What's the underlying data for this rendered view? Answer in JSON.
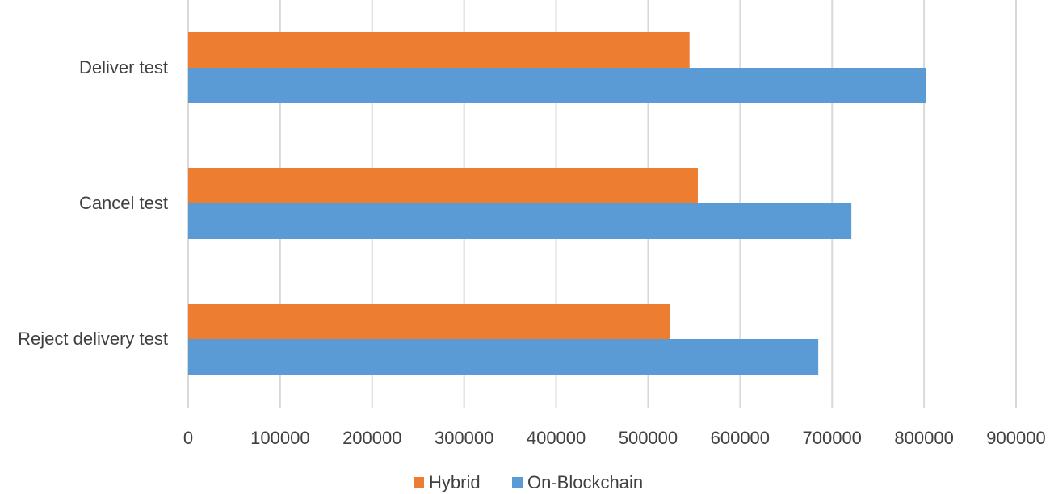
{
  "chart_data": {
    "type": "bar",
    "orientation": "horizontal",
    "categories": [
      "Deliver test",
      "Cancel test",
      "Reject delivery test"
    ],
    "series": [
      {
        "name": "Hybrid",
        "color": "#ED7D31",
        "values": [
          545000,
          554000,
          524000
        ]
      },
      {
        "name": "On-Blockchain",
        "color": "#5B9BD5",
        "values": [
          802000,
          721000,
          685000
        ]
      }
    ],
    "xlim": [
      0,
      900000
    ],
    "xticks": [
      0,
      100000,
      200000,
      300000,
      400000,
      500000,
      600000,
      700000,
      800000,
      900000
    ],
    "xtick_labels": [
      "0",
      "100000",
      "200000",
      "300000",
      "400000",
      "500000",
      "600000",
      "700000",
      "800000",
      "900000"
    ],
    "title": "",
    "xlabel": "",
    "ylabel": "",
    "grid": "vertical",
    "legend_position": "bottom"
  }
}
